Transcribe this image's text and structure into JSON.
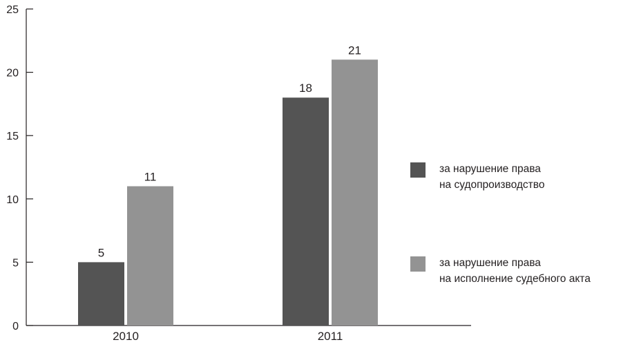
{
  "chart_data": {
    "type": "bar",
    "categories": [
      "2010",
      "2011"
    ],
    "series": [
      {
        "name": "за нарушение права на судопроизводство",
        "values": [
          5,
          18
        ],
        "color": "#545454"
      },
      {
        "name": "за нарушение права на исполнение судебного акта",
        "values": [
          11,
          21
        ],
        "color": "#939393"
      }
    ],
    "ylim": [
      0,
      25
    ],
    "yticks": [
      0,
      5,
      10,
      15,
      20,
      25
    ],
    "title": "",
    "xlabel": "",
    "ylabel": "",
    "grid": false,
    "legend_position": "right"
  },
  "legend": {
    "items": [
      {
        "line1": "за нарушение права",
        "line2": "на судопроизводство",
        "color": "#545454"
      },
      {
        "line1": "за нарушение права",
        "line2": "на исполнение судебного акта",
        "color": "#939393"
      }
    ]
  }
}
